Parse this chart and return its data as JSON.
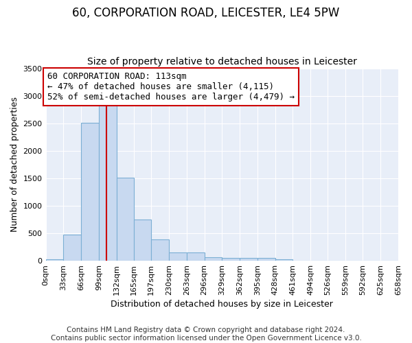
{
  "title": "60, CORPORATION ROAD, LEICESTER, LE4 5PW",
  "subtitle": "Size of property relative to detached houses in Leicester",
  "xlabel": "Distribution of detached houses by size in Leicester",
  "ylabel": "Number of detached properties",
  "bar_edges": [
    0,
    33,
    66,
    99,
    132,
    165,
    197,
    230,
    263,
    296,
    329,
    362,
    395,
    428,
    461,
    494,
    526,
    559,
    592,
    625,
    658
  ],
  "bar_heights": [
    30,
    470,
    2510,
    2850,
    1510,
    745,
    390,
    150,
    145,
    60,
    50,
    50,
    45,
    30,
    0,
    0,
    0,
    0,
    0,
    0
  ],
  "bar_color": "#c8d9f0",
  "bar_edge_color": "#7bafd4",
  "property_size": 113,
  "property_line_color": "#cc0000",
  "annotation_text": "60 CORPORATION ROAD: 113sqm\n← 47% of detached houses are smaller (4,115)\n52% of semi-detached houses are larger (4,479) →",
  "annotation_box_color": "#ffffff",
  "annotation_box_edge": "#cc0000",
  "ylim": [
    0,
    3500
  ],
  "yticks": [
    0,
    500,
    1000,
    1500,
    2000,
    2500,
    3000,
    3500
  ],
  "xtick_labels": [
    "0sqm",
    "33sqm",
    "66sqm",
    "99sqm",
    "132sqm",
    "165sqm",
    "197sqm",
    "230sqm",
    "263sqm",
    "296sqm",
    "329sqm",
    "362sqm",
    "395sqm",
    "428sqm",
    "461sqm",
    "494sqm",
    "526sqm",
    "559sqm",
    "592sqm",
    "625sqm",
    "658sqm"
  ],
  "footer": "Contains HM Land Registry data © Crown copyright and database right 2024.\nContains public sector information licensed under the Open Government Licence v3.0.",
  "bg_color": "#ffffff",
  "plot_bg_color": "#e8eef8",
  "grid_color": "#ffffff",
  "title_fontsize": 12,
  "subtitle_fontsize": 10,
  "axis_label_fontsize": 9,
  "tick_fontsize": 8,
  "footer_fontsize": 7.5,
  "annotation_fontsize": 9
}
